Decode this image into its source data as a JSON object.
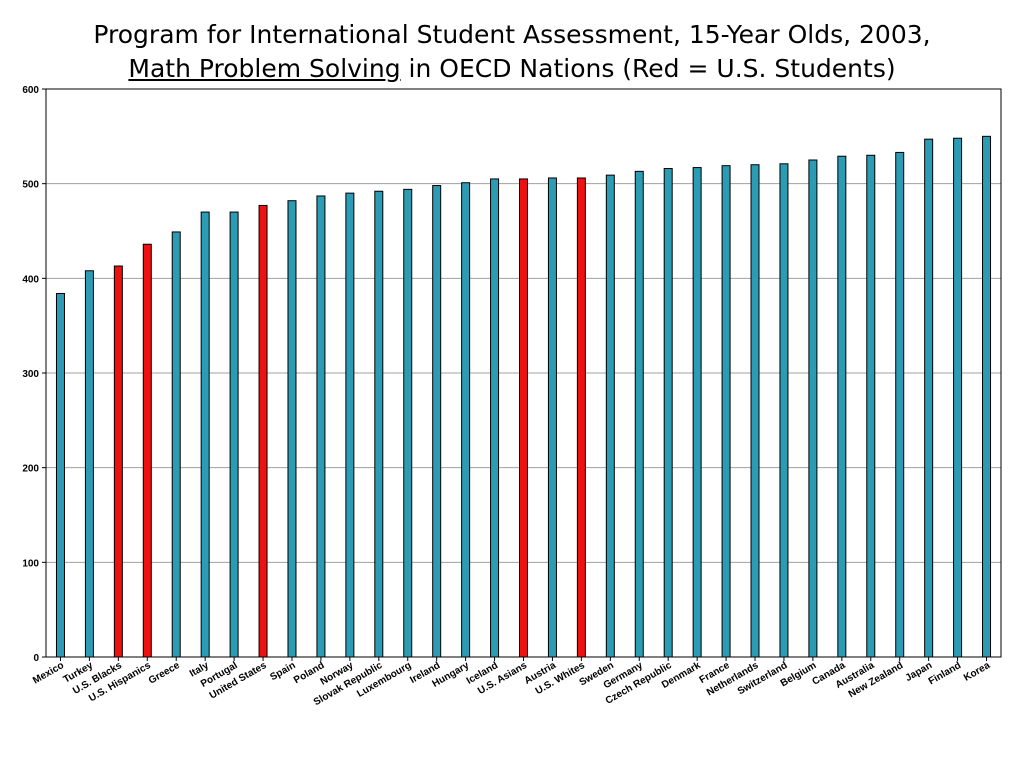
{
  "title": {
    "line1": "Program for International Student Assessment, 15-Year Olds, 2003,",
    "line2_underlined": "Math Problem Solving",
    "line2_rest": " in OECD Nations (Red = U.S. Students)"
  },
  "colors": {
    "country": "#2c9cb4",
    "us": "#ee1111",
    "grid": "#a0a0a0",
    "axis": "#000000"
  },
  "chart_data": {
    "type": "bar",
    "title": "Program for International Student Assessment, 15-Year Olds, 2003, Math Problem Solving in OECD Nations (Red = U.S. Students)",
    "xlabel": "",
    "ylabel": "",
    "ylim": [
      0,
      600
    ],
    "yticks": [
      0,
      100,
      200,
      300,
      400,
      500,
      600
    ],
    "grid": true,
    "categories": [
      "Mexico",
      "Turkey",
      "U.S. Blacks",
      "U.S. Hispanics",
      "Greece",
      "Italy",
      "Portugal",
      "United States",
      "Spain",
      "Poland",
      "Norway",
      "Slovak Republic",
      "Luxembourg",
      "Ireland",
      "Hungary",
      "Iceland",
      "U.S. Asians",
      "Austria",
      "U.S. Whites",
      "Sweden",
      "Germany",
      "Czech Republic",
      "Denmark",
      "France",
      "Netherlands",
      "Switzerland",
      "Belgium",
      "Canada",
      "Australia",
      "New Zealand",
      "Japan",
      "Finland",
      "Korea"
    ],
    "values": [
      384,
      408,
      413,
      436,
      449,
      470,
      470,
      477,
      482,
      487,
      490,
      492,
      494,
      498,
      501,
      505,
      505,
      506,
      506,
      509,
      513,
      516,
      517,
      519,
      520,
      521,
      525,
      529,
      530,
      533,
      547,
      548,
      550
    ],
    "highlight_us": [
      false,
      false,
      true,
      true,
      false,
      false,
      false,
      true,
      false,
      false,
      false,
      false,
      false,
      false,
      false,
      false,
      true,
      false,
      true,
      false,
      false,
      false,
      false,
      false,
      false,
      false,
      false,
      false,
      false,
      false,
      false,
      false,
      false
    ]
  }
}
